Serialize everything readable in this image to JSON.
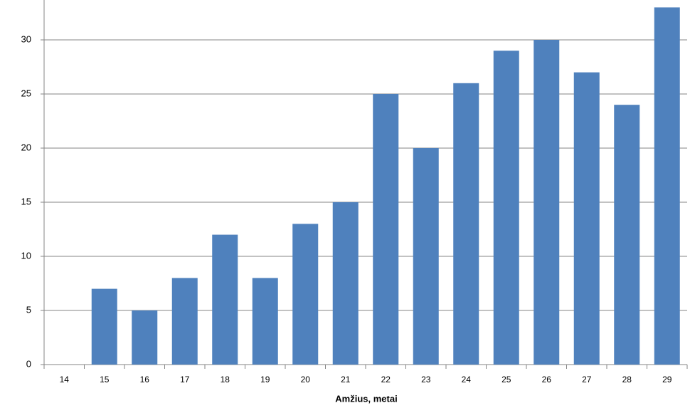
{
  "chart_data": {
    "type": "bar",
    "x_label": "Amžius, metai",
    "categories": [
      "14",
      "15",
      "16",
      "17",
      "18",
      "19",
      "20",
      "21",
      "22",
      "23",
      "24",
      "25",
      "26",
      "27",
      "28",
      "29"
    ],
    "values": [
      0,
      7,
      5,
      8,
      12,
      8,
      13,
      15,
      25,
      20,
      26,
      29,
      30,
      27,
      24,
      33
    ],
    "color": "#4f81bd",
    "ylim": [
      0,
      35
    ],
    "yticks": [
      0,
      5,
      10,
      15,
      20,
      25,
      30
    ],
    "grid": true
  }
}
